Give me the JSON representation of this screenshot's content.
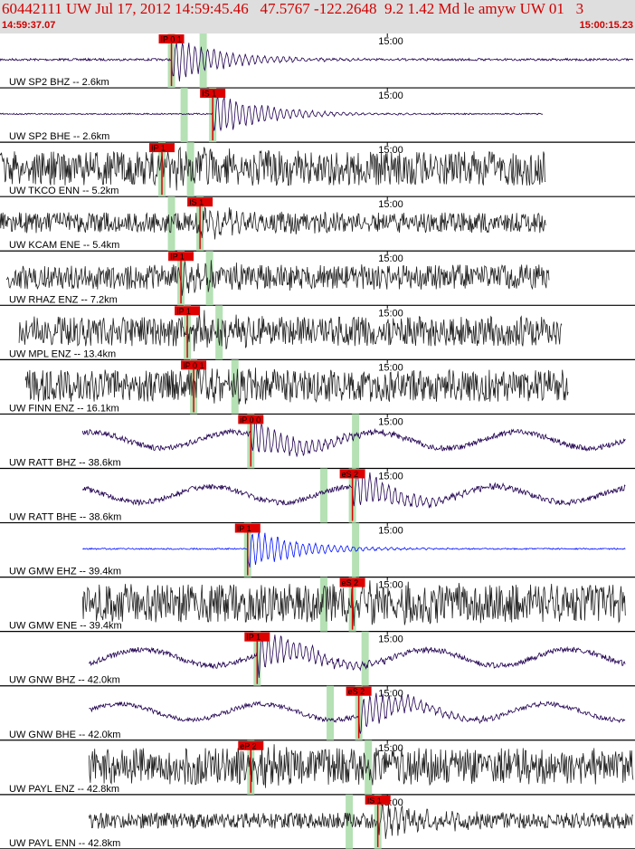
{
  "header": {
    "title": "60442111 UW Jul 17, 2012 14:59:45.46   47.5767 -122.2648  9.2 1.42 Md le amyw UW 01   3",
    "start_time": "14:59:37.07",
    "end_time": "15:00:15.23"
  },
  "colors": {
    "pick": "#dd0000",
    "band": "#a8dca8",
    "trace_dark": "#222222",
    "trace_navy": "#200050",
    "trace_blue": "#0010ff"
  },
  "chart_data": {
    "type": "seismogram",
    "time_range": [
      "14:59:37.07",
      "15:00:15.23"
    ],
    "minute_label": "15:00",
    "traces": [
      {
        "label": "UW SP2 BHZ -- 2.6km",
        "color": "navy",
        "start": 0.0,
        "end": 0.998,
        "noise": 0.05,
        "pick": "IP 0 1",
        "pick_t": 0.27,
        "s_t": 0.32,
        "amp": 1.0,
        "phase": "P"
      },
      {
        "label": "UW SP2 BHE -- 2.6km",
        "color": "navy",
        "start": 0.0,
        "end": 0.855,
        "noise": 0.03,
        "pick": "IS 1",
        "pick_t": 0.335,
        "s_t": 0.335,
        "amp": 1.0,
        "phase": "S"
      },
      {
        "label": "UW TKCO ENN -- 5.2km",
        "color": "dark",
        "start": 0.0,
        "end": 0.86,
        "noise": 0.75,
        "pick": "IP 1",
        "pick_t": 0.255,
        "s_t": 0.3,
        "amp": 0.5,
        "phase": "P"
      },
      {
        "label": "UW KCAM ENE -- 5.4km",
        "color": "dark",
        "start": 0.0,
        "end": 0.86,
        "noise": 0.45,
        "pick": "IS 1",
        "pick_t": 0.315,
        "s_t": 0.315,
        "amp": 0.5,
        "phase": "S"
      },
      {
        "label": "UW RHAZ ENZ -- 7.2km",
        "color": "dark",
        "start": 0.01,
        "end": 0.865,
        "noise": 0.55,
        "pick": "IP 1",
        "pick_t": 0.285,
        "s_t": 0.33,
        "amp": 0.5,
        "phase": "P"
      },
      {
        "label": "UW MPL ENZ -- 13.4km",
        "color": "dark",
        "start": 0.03,
        "end": 0.885,
        "noise": 0.65,
        "pick": "IP 1",
        "pick_t": 0.295,
        "s_t": 0.345,
        "amp": 0.5,
        "phase": "P"
      },
      {
        "label": "UW FINN ENZ -- 16.1km",
        "color": "dark",
        "start": 0.04,
        "end": 0.895,
        "noise": 0.7,
        "pick": "IP 0 1",
        "pick_t": 0.305,
        "s_t": 0.37,
        "amp": 0.5,
        "phase": "P"
      },
      {
        "label": "UW RATT BHZ -- 38.6km",
        "color": "navy",
        "start": 0.13,
        "end": 0.985,
        "noise": 0.12,
        "pick": "iP 0 0",
        "pick_t": 0.395,
        "s_t": 0.56,
        "amp": 0.9,
        "phase": "P"
      },
      {
        "label": "UW RATT BHE -- 38.6km",
        "color": "navy",
        "start": 0.13,
        "end": 0.985,
        "noise": 0.12,
        "pick": "eS 2",
        "pick_t": 0.555,
        "s_t": 0.555,
        "amp": 0.9,
        "phase": "S"
      },
      {
        "label": "UW GMW EHZ -- 39.4km",
        "color": "blue",
        "start": 0.13,
        "end": 0.985,
        "noise": 0.03,
        "pick": "IP 1",
        "pick_t": 0.39,
        "s_t": 0.56,
        "amp": 0.9,
        "phase": "P"
      },
      {
        "label": "UW GMW ENE -- 39.4km",
        "color": "dark",
        "start": 0.13,
        "end": 0.985,
        "noise": 0.85,
        "pick": "eS 2",
        "pick_t": 0.555,
        "s_t": 0.555,
        "amp": 0.6,
        "phase": "S"
      },
      {
        "label": "UW GNW BHZ -- 42.0km",
        "color": "navy",
        "start": 0.14,
        "end": 0.985,
        "noise": 0.12,
        "pick": "IP 1",
        "pick_t": 0.405,
        "s_t": 0.575,
        "amp": 0.9,
        "phase": "P"
      },
      {
        "label": "UW GNW BHE -- 42.0km",
        "color": "navy",
        "start": 0.14,
        "end": 0.985,
        "noise": 0.1,
        "pick": "eS 2",
        "pick_t": 0.565,
        "s_t": 0.565,
        "amp": 0.9,
        "phase": "S"
      },
      {
        "label": "UW PAYL ENZ -- 42.8km",
        "color": "dark",
        "start": 0.14,
        "end": 0.998,
        "noise": 0.8,
        "pick": "eP 2",
        "pick_t": 0.395,
        "s_t": 0.58,
        "amp": 0.4,
        "phase": "P"
      },
      {
        "label": "UW PAYL ENN -- 42.8km",
        "color": "dark",
        "start": 0.14,
        "end": 0.998,
        "noise": 0.35,
        "pick": "IS 1",
        "pick_t": 0.595,
        "s_t": 0.595,
        "amp": 0.6,
        "phase": "S"
      }
    ]
  }
}
